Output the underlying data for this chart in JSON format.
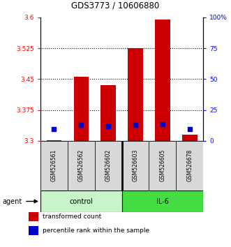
{
  "title": "GDS3773 / 10606880",
  "samples": [
    "GSM526561",
    "GSM526562",
    "GSM526602",
    "GSM526603",
    "GSM526605",
    "GSM526678"
  ],
  "red_values": [
    3.302,
    3.455,
    3.435,
    3.525,
    3.595,
    3.315
  ],
  "blue_values": [
    3.328,
    3.338,
    3.335,
    3.338,
    3.34,
    3.328
  ],
  "ymin": 3.3,
  "ymax": 3.6,
  "yticks": [
    3.3,
    3.375,
    3.45,
    3.525,
    3.6
  ],
  "ytick_labels": [
    "3.3",
    "3.375",
    "3.45",
    "3.525",
    "3.6"
  ],
  "right_yticks": [
    0,
    25,
    50,
    75,
    100
  ],
  "right_ytick_labels": [
    "0",
    "25",
    "50",
    "75",
    "100%"
  ],
  "bar_color": "#cc0000",
  "dot_color": "#0000cc",
  "bar_bottom": 3.3,
  "bar_width": 0.55,
  "ctrl_color": "#c8f5c8",
  "il6_color": "#44dd44",
  "legend_items": [
    "transformed count",
    "percentile rank within the sample"
  ],
  "legend_colors": [
    "#cc0000",
    "#0000cc"
  ],
  "title_fontsize": 8.5
}
